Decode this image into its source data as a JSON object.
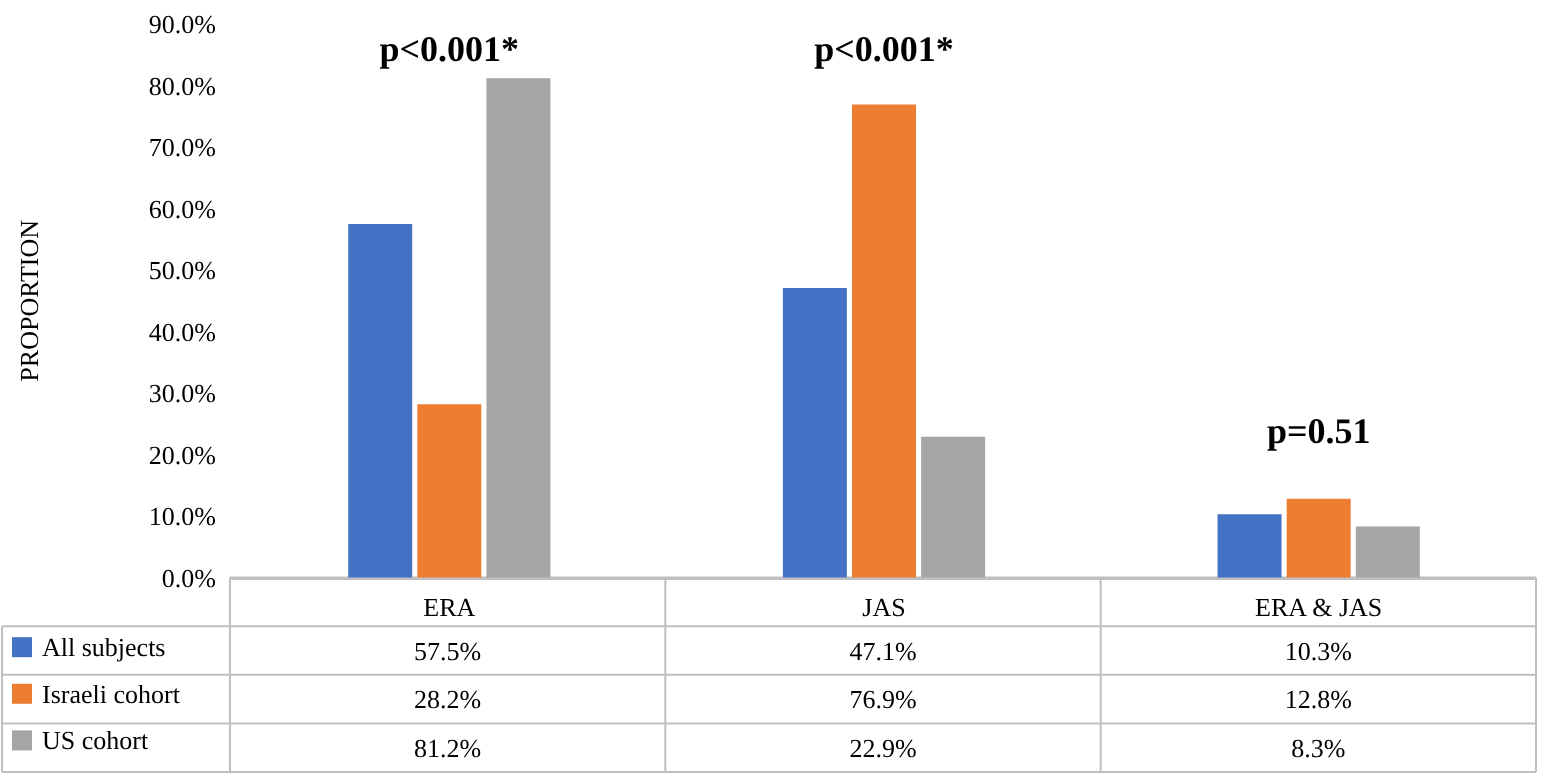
{
  "chart_data": {
    "type": "bar",
    "ylabel": "PROPORTION",
    "categories": [
      "ERA",
      "JAS",
      "ERA & JAS"
    ],
    "series": [
      {
        "name": "All subjects",
        "color": "#4472c4",
        "values": [
          57.5,
          47.1,
          10.3
        ],
        "value_labels": [
          "57.5%",
          "47.1%",
          "10.3%"
        ]
      },
      {
        "name": "Israeli cohort",
        "color": "#ed7d31",
        "values": [
          28.2,
          76.9,
          12.8
        ],
        "value_labels": [
          "28.2%",
          "76.9%",
          "12.8%"
        ]
      },
      {
        "name": "US cohort",
        "color": "#a5a5a5",
        "values": [
          81.2,
          22.9,
          8.3
        ],
        "value_labels": [
          "81.2%",
          "22.9%",
          "8.3%"
        ]
      }
    ],
    "ylim": [
      0,
      90
    ],
    "yticks": [
      {
        "value": 0,
        "label": "0.0%"
      },
      {
        "value": 10,
        "label": "10.0%"
      },
      {
        "value": 20,
        "label": "20.0%"
      },
      {
        "value": 30,
        "label": "30.0%"
      },
      {
        "value": 40,
        "label": "40.0%"
      },
      {
        "value": 50,
        "label": "50.0%"
      },
      {
        "value": 60,
        "label": "60.0%"
      },
      {
        "value": 70,
        "label": "70.0%"
      },
      {
        "value": 80,
        "label": "80.0%"
      },
      {
        "value": 90,
        "label": "90.0%"
      }
    ],
    "annotations": [
      "p<0.001*",
      "p<0.001*",
      "p=0.51"
    ],
    "grid": false,
    "legend": "bottom"
  }
}
